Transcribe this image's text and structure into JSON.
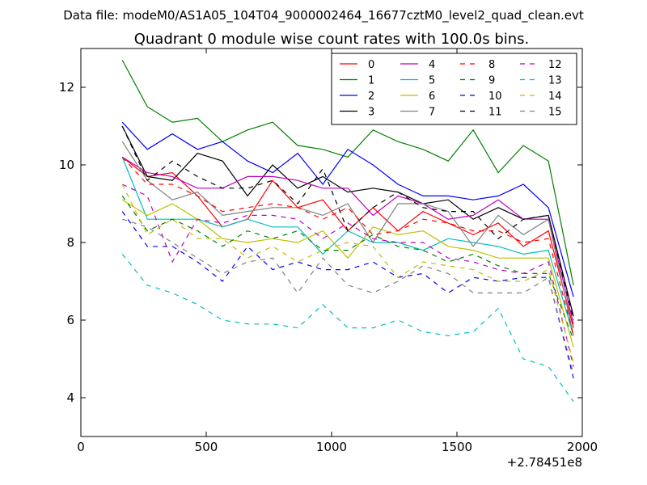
{
  "chart_data": {
    "type": "line",
    "suptitle": "Data file: modeM0/AS1A05_104T04_9000002464_16677cztM0_level2_quad_clean.evt",
    "title": "Quadrant 0 module wise count rates with 100.0s bins.",
    "xlabel": "",
    "ylabel": "",
    "x_offset_label": "+2.78451e8",
    "xlim": [
      0,
      2000
    ],
    "ylim": [
      3,
      13
    ],
    "xticks": [
      0,
      500,
      1000,
      1500,
      2000
    ],
    "xtick_labels": [
      "0",
      "500",
      "1000",
      "1500",
      "2000"
    ],
    "yticks": [
      4,
      6,
      8,
      10,
      12
    ],
    "ytick_labels": [
      "4",
      "6",
      "8",
      "10",
      "12"
    ],
    "grid": false,
    "legend_position": "top-right",
    "x": [
      165,
      265,
      365,
      465,
      565,
      665,
      765,
      865,
      965,
      1065,
      1165,
      1265,
      1365,
      1465,
      1565,
      1665,
      1765,
      1865,
      1965
    ],
    "series": [
      {
        "name": "0",
        "color": "#ff0000",
        "dash": "solid",
        "values": [
          10.2,
          9.7,
          9.8,
          9.2,
          8.4,
          8.6,
          9.6,
          8.9,
          9.1,
          8.3,
          8.9,
          8.3,
          8.8,
          8.5,
          8.2,
          8.5,
          7.9,
          8.3,
          5.8
        ]
      },
      {
        "name": "1",
        "color": "#008000",
        "dash": "solid",
        "values": [
          12.7,
          11.5,
          11.1,
          11.2,
          10.6,
          10.9,
          11.1,
          10.5,
          10.4,
          10.2,
          10.9,
          10.6,
          10.4,
          10.1,
          10.9,
          9.8,
          10.5,
          10.1,
          6.9
        ]
      },
      {
        "name": "2",
        "color": "#0000ff",
        "dash": "solid",
        "values": [
          11.1,
          10.4,
          10.8,
          10.4,
          10.6,
          10.1,
          9.8,
          10.3,
          9.5,
          10.4,
          10.0,
          9.5,
          9.2,
          9.2,
          9.1,
          9.2,
          9.5,
          8.9,
          6.6
        ]
      },
      {
        "name": "3",
        "color": "#000000",
        "dash": "solid",
        "values": [
          11.0,
          9.7,
          9.6,
          10.3,
          10.1,
          9.2,
          10.0,
          9.4,
          9.7,
          9.3,
          9.4,
          9.3,
          9.0,
          9.1,
          8.6,
          8.9,
          8.6,
          8.7,
          6.1
        ]
      },
      {
        "name": "4",
        "color": "#bf00bf",
        "dash": "solid",
        "values": [
          10.2,
          9.8,
          9.7,
          9.4,
          9.4,
          9.7,
          9.7,
          9.6,
          9.4,
          9.4,
          8.7,
          9.2,
          9.0,
          8.6,
          8.7,
          9.1,
          8.6,
          8.6,
          5.9
        ]
      },
      {
        "name": "5",
        "color": "#00bfbf",
        "dash": "solid",
        "values": [
          10.2,
          8.6,
          8.6,
          8.6,
          8.4,
          8.6,
          8.4,
          8.4,
          7.7,
          8.3,
          8.0,
          8.0,
          7.8,
          8.1,
          8.0,
          7.9,
          7.7,
          7.8,
          5.6
        ]
      },
      {
        "name": "6",
        "color": "#bfbf00",
        "dash": "solid",
        "values": [
          9.1,
          8.7,
          9.0,
          8.6,
          8.1,
          8.0,
          8.1,
          8.0,
          8.3,
          7.6,
          8.4,
          8.2,
          8.3,
          7.9,
          7.8,
          7.6,
          7.6,
          7.6,
          5.3
        ]
      },
      {
        "name": "7",
        "color": "#808080",
        "dash": "solid",
        "values": [
          10.6,
          9.6,
          9.1,
          9.3,
          8.7,
          8.8,
          8.9,
          8.9,
          8.7,
          9.0,
          8.0,
          9.0,
          9.0,
          8.8,
          7.9,
          8.7,
          8.2,
          8.6,
          5.6
        ]
      },
      {
        "name": "8",
        "color": "#ff0000",
        "dash": "dashed",
        "values": [
          10.2,
          9.5,
          9.5,
          9.2,
          8.8,
          8.9,
          9.0,
          8.9,
          8.6,
          8.9,
          8.2,
          8.3,
          8.6,
          8.5,
          8.3,
          8.3,
          8.0,
          8.1,
          5.6
        ]
      },
      {
        "name": "9",
        "color": "#008000",
        "dash": "dashed",
        "values": [
          9.2,
          8.3,
          8.6,
          8.3,
          7.9,
          8.3,
          8.1,
          8.3,
          7.8,
          7.8,
          8.2,
          7.9,
          7.8,
          7.5,
          7.7,
          7.4,
          7.2,
          7.2,
          5.5
        ]
      },
      {
        "name": "10",
        "color": "#0000ff",
        "dash": "dashed",
        "values": [
          8.8,
          7.9,
          7.9,
          7.5,
          7.0,
          7.9,
          7.3,
          7.5,
          7.3,
          7.3,
          7.5,
          7.1,
          7.2,
          6.7,
          7.1,
          7.0,
          7.1,
          7.1,
          4.5
        ]
      },
      {
        "name": "11",
        "color": "#000000",
        "dash": "dashed",
        "values": [
          11.0,
          9.6,
          10.1,
          9.7,
          9.4,
          9.4,
          9.6,
          9.0,
          9.9,
          8.3,
          8.9,
          9.3,
          8.9,
          8.8,
          8.8,
          8.1,
          8.6,
          8.7,
          6.0
        ]
      },
      {
        "name": "12",
        "color": "#bf00bf",
        "dash": "dashed",
        "values": [
          9.5,
          9.2,
          7.5,
          8.6,
          8.5,
          8.7,
          8.7,
          8.6,
          8.1,
          8.5,
          8.1,
          8.0,
          8.0,
          7.6,
          7.5,
          7.3,
          7.2,
          7.5,
          4.8
        ]
      },
      {
        "name": "13",
        "color": "#00bfbf",
        "dash": "dashed",
        "values": [
          7.7,
          6.9,
          6.7,
          6.4,
          6.0,
          5.9,
          5.9,
          5.8,
          6.4,
          5.8,
          5.8,
          6.0,
          5.7,
          5.6,
          5.7,
          6.3,
          5.0,
          4.8,
          3.9
        ]
      },
      {
        "name": "14",
        "color": "#bfbf00",
        "dash": "dashed",
        "values": [
          9.5,
          8.2,
          8.6,
          8.1,
          8.1,
          7.6,
          7.9,
          7.5,
          7.8,
          8.0,
          7.9,
          7.1,
          7.5,
          7.4,
          7.3,
          7.0,
          7.0,
          7.3,
          4.9
        ]
      },
      {
        "name": "15",
        "color": "#808080",
        "dash": "dashed",
        "values": [
          8.6,
          8.4,
          8.0,
          7.6,
          7.2,
          7.5,
          7.6,
          6.7,
          7.6,
          6.9,
          6.7,
          7.0,
          7.4,
          7.2,
          6.7,
          6.7,
          6.7,
          7.1,
          4.6
        ]
      }
    ]
  }
}
